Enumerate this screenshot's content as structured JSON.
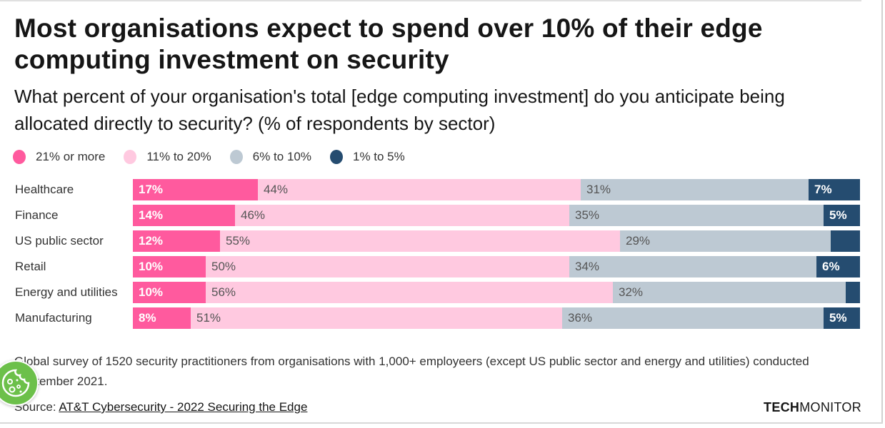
{
  "header": {
    "title": "Most organisations expect to spend over 10% of their edge computing investment on security",
    "subtitle": "What percent of your organisation's total [edge computing investment] do you anticipate being allocated directly to security? (% of respondents by sector)"
  },
  "colors": {
    "21_or_more": "#ff5a9e",
    "11_to_20": "#ffc9e0",
    "6_to_10": "#bdc9d3",
    "1_to_5": "#254c70"
  },
  "chart_data": {
    "type": "bar",
    "orientation": "horizontal",
    "stacked": true,
    "title": "Most organisations expect to spend over 10% of their edge computing investment on security",
    "subtitle": "What percent of your organisation's total [edge computing investment] do you anticipate being allocated directly to security? (% of respondents by sector)",
    "xlabel": "",
    "ylabel": "",
    "unit": "%",
    "legend_position": "top-left",
    "grid": false,
    "categories": [
      "Healthcare",
      "Finance",
      "US public sector",
      "Retail",
      "Energy and utilities",
      "Manufacturing"
    ],
    "series": [
      {
        "name": "21% or more",
        "color": "#ff5a9e",
        "label_style": "dark",
        "values": [
          17,
          14,
          12,
          10,
          10,
          8
        ],
        "labels": [
          "17%",
          "14%",
          "12%",
          "10%",
          "10%",
          "8%"
        ]
      },
      {
        "name": "11% to 20%",
        "color": "#ffc9e0",
        "label_style": "light",
        "values": [
          44,
          46,
          55,
          50,
          56,
          51
        ],
        "labels": [
          "44%",
          "46%",
          "55%",
          "50%",
          "56%",
          "51%"
        ]
      },
      {
        "name": "6% to 10%",
        "color": "#bdc9d3",
        "label_style": "light",
        "values": [
          31,
          35,
          29,
          34,
          32,
          36
        ],
        "labels": [
          "31%",
          "35%",
          "29%",
          "34%",
          "32%",
          "36%"
        ]
      },
      {
        "name": "1% to 5%",
        "color": "#254c70",
        "label_style": "dark",
        "values": [
          7,
          5,
          4,
          6,
          2,
          5
        ],
        "labels": [
          "7%",
          "5%",
          "",
          "6%",
          "",
          "5%"
        ]
      }
    ]
  },
  "footer": {
    "note": "Global survey of 1520 security practitioners from organisations with 1,000+ employeers (except US public sector and energy and utilities) conducted September 2021.",
    "source_prefix": "Source: ",
    "source_link": "AT&T Cybersecurity - 2022 Securing the Edge",
    "brand_bold": "TECH",
    "brand_light": "MONITOR"
  },
  "overlay": {
    "cookie_button": "cookie-settings"
  }
}
